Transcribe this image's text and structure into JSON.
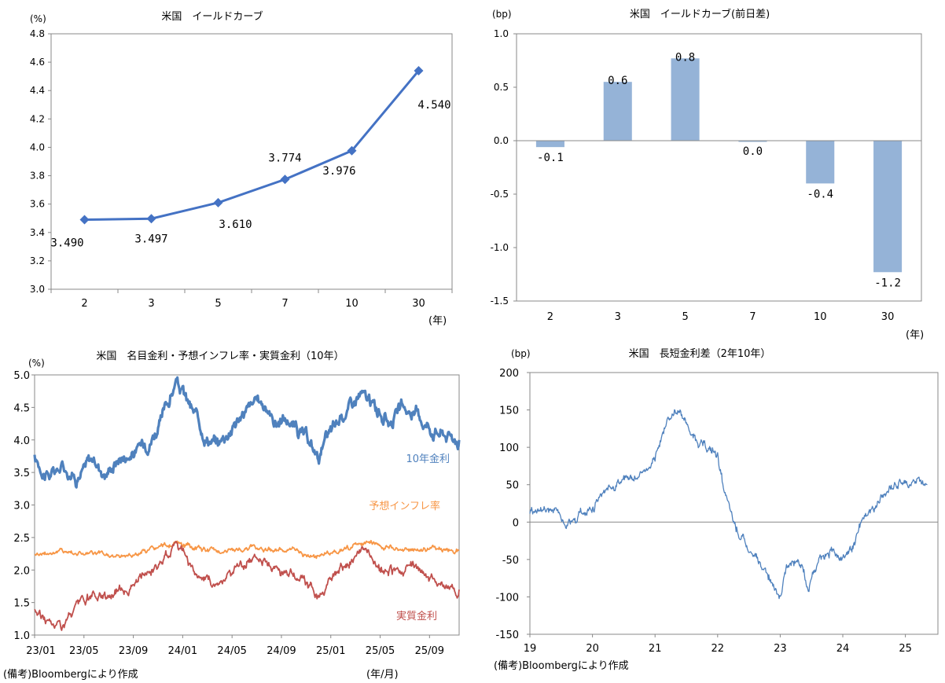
{
  "footnote_left": "(備考)Bloombergにより作成",
  "footnote_right": "(備考)Bloombergにより作成",
  "chart_data": [
    {
      "id": "yield_curve",
      "type": "line",
      "title": "米国　イールドカーブ",
      "ylabel": "(%)",
      "xlabel": "(年)",
      "ylim": [
        3.0,
        4.8
      ],
      "yticks": [
        "3.0",
        "3.2",
        "3.4",
        "3.6",
        "3.8",
        "4.0",
        "4.2",
        "4.4",
        "4.6",
        "4.8"
      ],
      "categories": [
        "2",
        "3",
        "5",
        "7",
        "10",
        "30"
      ],
      "values": [
        3.49,
        3.497,
        3.61,
        3.774,
        3.976,
        4.54
      ],
      "data_labels": [
        "3.490",
        "3.497",
        "3.610",
        "3.774",
        "3.976",
        "4.540"
      ],
      "color": "#4472C4"
    },
    {
      "id": "yield_change",
      "type": "bar",
      "title": "米国　イールドカーブ(前日差)",
      "ylabel": "(bp)",
      "xlabel": "(年)",
      "ylim": [
        -1.5,
        1.0
      ],
      "yticks": [
        "1.0",
        "0.5",
        "0.0",
        "-0.5",
        "-1.0",
        "-1.5"
      ],
      "categories": [
        "2",
        "3",
        "5",
        "7",
        "10",
        "30"
      ],
      "values": [
        -0.06,
        0.55,
        0.77,
        -0.01,
        -0.4,
        -1.23
      ],
      "data_labels": [
        "-0.1",
        "0.6",
        "0.8",
        "0.0",
        "-0.4",
        "-1.2"
      ],
      "color": "#95B3D7"
    },
    {
      "id": "nominal_breakeven_real",
      "type": "line",
      "title": "米国　名目金利・予想インフレ率・実質金利（10年）",
      "ylabel": "(%)",
      "xlabel": "(年/月)",
      "ylim": [
        1.0,
        5.0
      ],
      "yticks": [
        "5.0",
        "4.5",
        "4.0",
        "3.5",
        "3.0",
        "2.5",
        "2.0",
        "1.5",
        "1.0"
      ],
      "x_ticks": [
        "23/01",
        "23/05",
        "23/09",
        "24/01",
        "24/05",
        "24/09",
        "25/01",
        "25/05",
        "25/09"
      ],
      "series": [
        {
          "name": "10年金利",
          "color": "#4F81BD",
          "keypoints": [
            [
              0,
              3.7
            ],
            [
              1,
              3.45
            ],
            [
              2,
              3.6
            ],
            [
              3,
              3.45
            ],
            [
              4,
              3.7
            ],
            [
              5,
              3.5
            ],
            [
              6,
              3.75
            ],
            [
              7,
              3.8
            ],
            [
              8,
              4.0
            ],
            [
              9,
              4.3
            ],
            [
              10,
              4.9
            ],
            [
              11,
              4.5
            ],
            [
              12,
              4.1
            ],
            [
              13,
              3.95
            ],
            [
              14,
              4.25
            ],
            [
              15,
              4.45
            ],
            [
              16,
              4.6
            ],
            [
              17,
              4.3
            ],
            [
              18,
              4.3
            ],
            [
              19,
              4.05
            ],
            [
              20,
              3.75
            ],
            [
              21,
              4.1
            ],
            [
              22,
              4.45
            ],
            [
              23,
              4.7
            ],
            [
              24,
              4.5
            ],
            [
              25,
              4.3
            ],
            [
              26,
              4.45
            ],
            [
              27,
              4.4
            ],
            [
              28,
              4.2
            ],
            [
              29,
              4.1
            ],
            [
              30,
              4.0
            ]
          ]
        },
        {
          "name": "予想インフレ率",
          "color": "#F79646",
          "keypoints": [
            [
              0,
              2.25
            ],
            [
              2,
              2.3
            ],
            [
              4,
              2.25
            ],
            [
              6,
              2.2
            ],
            [
              8,
              2.3
            ],
            [
              10,
              2.4
            ],
            [
              12,
              2.3
            ],
            [
              14,
              2.3
            ],
            [
              16,
              2.35
            ],
            [
              18,
              2.3
            ],
            [
              20,
              2.2
            ],
            [
              22,
              2.35
            ],
            [
              24,
              2.4
            ],
            [
              26,
              2.3
            ],
            [
              28,
              2.35
            ],
            [
              30,
              2.3
            ]
          ]
        },
        {
          "name": "実質金利",
          "color": "#C0504D",
          "keypoints": [
            [
              0,
              1.4
            ],
            [
              1,
              1.2
            ],
            [
              2,
              1.15
            ],
            [
              3,
              1.4
            ],
            [
              4,
              1.55
            ],
            [
              5,
              1.6
            ],
            [
              6,
              1.7
            ],
            [
              7,
              1.8
            ],
            [
              8,
              1.95
            ],
            [
              9,
              2.1
            ],
            [
              10,
              2.5
            ],
            [
              11,
              2.1
            ],
            [
              12,
              1.8
            ],
            [
              13,
              1.8
            ],
            [
              14,
              2.0
            ],
            [
              15,
              2.1
            ],
            [
              16,
              2.25
            ],
            [
              17,
              2.0
            ],
            [
              18,
              2.0
            ],
            [
              19,
              1.8
            ],
            [
              20,
              1.6
            ],
            [
              21,
              1.85
            ],
            [
              22,
              2.0
            ],
            [
              23,
              2.3
            ],
            [
              24,
              2.1
            ],
            [
              25,
              1.9
            ],
            [
              26,
              2.05
            ],
            [
              27,
              2.0
            ],
            [
              28,
              1.85
            ],
            [
              29,
              1.8
            ],
            [
              30,
              1.7
            ]
          ]
        }
      ]
    },
    {
      "id": "term_spread",
      "type": "line",
      "title": "米国　長短金利差（2年10年）",
      "ylabel": "(bp)",
      "ylim": [
        -150,
        200
      ],
      "yticks": [
        "200",
        "150",
        "100",
        "50",
        "0",
        "-50",
        "-100",
        "-150"
      ],
      "x_ticks": [
        "19",
        "20",
        "21",
        "22",
        "23",
        "24",
        "25"
      ],
      "series": [
        {
          "name": "2年10年",
          "color": "#4F81BD",
          "keypoints": [
            [
              0,
              15
            ],
            [
              0.4,
              18
            ],
            [
              0.6,
              0
            ],
            [
              0.9,
              15
            ],
            [
              1.1,
              30
            ],
            [
              1.4,
              55
            ],
            [
              1.7,
              60
            ],
            [
              2.0,
              80
            ],
            [
              2.2,
              140
            ],
            [
              2.4,
              150
            ],
            [
              2.6,
              115
            ],
            [
              2.8,
              100
            ],
            [
              3.0,
              90
            ],
            [
              3.1,
              40
            ],
            [
              3.25,
              0
            ],
            [
              3.5,
              -40
            ],
            [
              3.7,
              -60
            ],
            [
              3.9,
              -80
            ],
            [
              4.0,
              -100
            ],
            [
              4.1,
              -60
            ],
            [
              4.3,
              -50
            ],
            [
              4.45,
              -90
            ],
            [
              4.6,
              -50
            ],
            [
              4.8,
              -40
            ],
            [
              5.0,
              -45
            ],
            [
              5.2,
              -30
            ],
            [
              5.3,
              0
            ],
            [
              5.5,
              20
            ],
            [
              5.7,
              40
            ],
            [
              5.9,
              55
            ],
            [
              6.0,
              50
            ],
            [
              6.2,
              55
            ],
            [
              6.35,
              50
            ]
          ]
        }
      ]
    }
  ]
}
